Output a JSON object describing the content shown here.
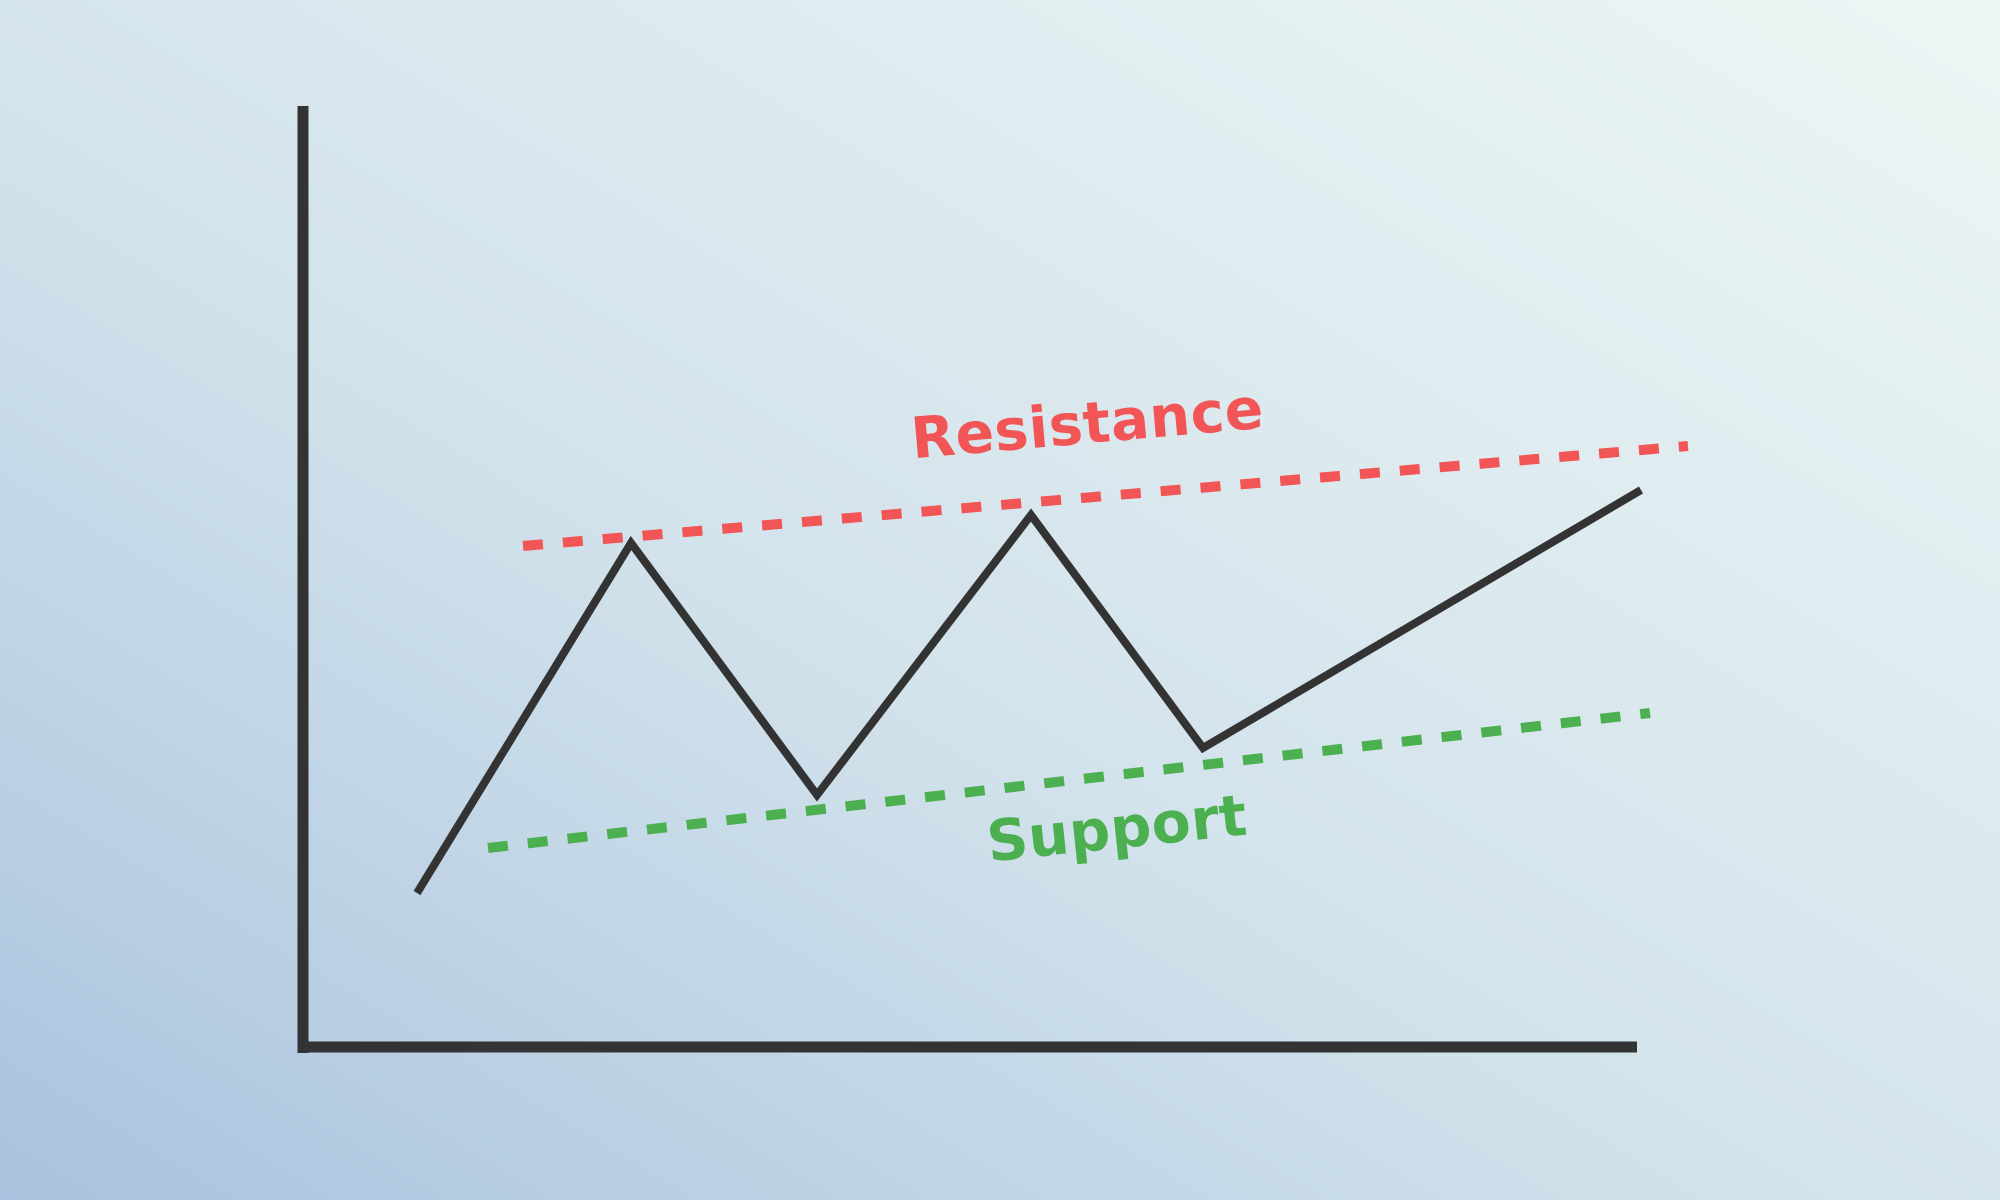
{
  "labels": {
    "resistance": "Resistance",
    "support": "Support"
  },
  "colors": {
    "axis": "#333333",
    "price_line": "#333333",
    "resistance": "#f25555",
    "support": "#4caf50"
  }
}
